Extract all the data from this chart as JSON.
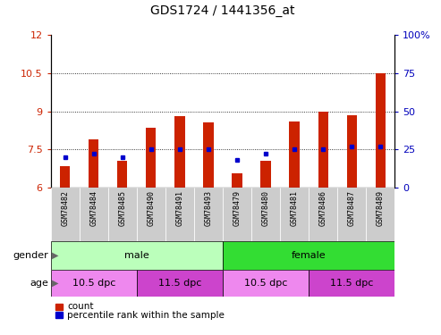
{
  "title": "GDS1724 / 1441356_at",
  "samples": [
    "GSM78482",
    "GSM78484",
    "GSM78485",
    "GSM78490",
    "GSM78491",
    "GSM78493",
    "GSM78479",
    "GSM78480",
    "GSM78481",
    "GSM78486",
    "GSM78487",
    "GSM78489"
  ],
  "count_values": [
    6.85,
    7.9,
    7.05,
    8.35,
    8.8,
    8.55,
    6.55,
    7.05,
    8.6,
    9.0,
    8.85,
    10.5
  ],
  "percentile_values": [
    20,
    22,
    20,
    25,
    25,
    25,
    18,
    22,
    25,
    25,
    27,
    27
  ],
  "ylim_left": [
    6,
    12
  ],
  "ylim_right": [
    0,
    100
  ],
  "yticks_left": [
    6,
    7.5,
    9,
    10.5,
    12
  ],
  "yticks_right": [
    0,
    25,
    50,
    75,
    100
  ],
  "bar_color": "#cc2200",
  "dot_color": "#0000cc",
  "gender_groups": [
    {
      "label": "male",
      "start": 0,
      "end": 6,
      "color": "#bbffbb"
    },
    {
      "label": "female",
      "start": 6,
      "end": 12,
      "color": "#33dd33"
    }
  ],
  "age_groups": [
    {
      "label": "10.5 dpc",
      "start": 0,
      "end": 3,
      "color": "#ee88ee"
    },
    {
      "label": "11.5 dpc",
      "start": 3,
      "end": 6,
      "color": "#cc44cc"
    },
    {
      "label": "10.5 dpc",
      "start": 6,
      "end": 9,
      "color": "#ee88ee"
    },
    {
      "label": "11.5 dpc",
      "start": 9,
      "end": 12,
      "color": "#cc44cc"
    }
  ],
  "legend_items": [
    {
      "label": "count",
      "color": "#cc2200"
    },
    {
      "label": "percentile rank within the sample",
      "color": "#0000cc"
    }
  ],
  "left_axis_color": "#cc2200",
  "right_axis_color": "#0000bb",
  "tick_bg_color": "#cccccc",
  "bar_width": 0.35
}
